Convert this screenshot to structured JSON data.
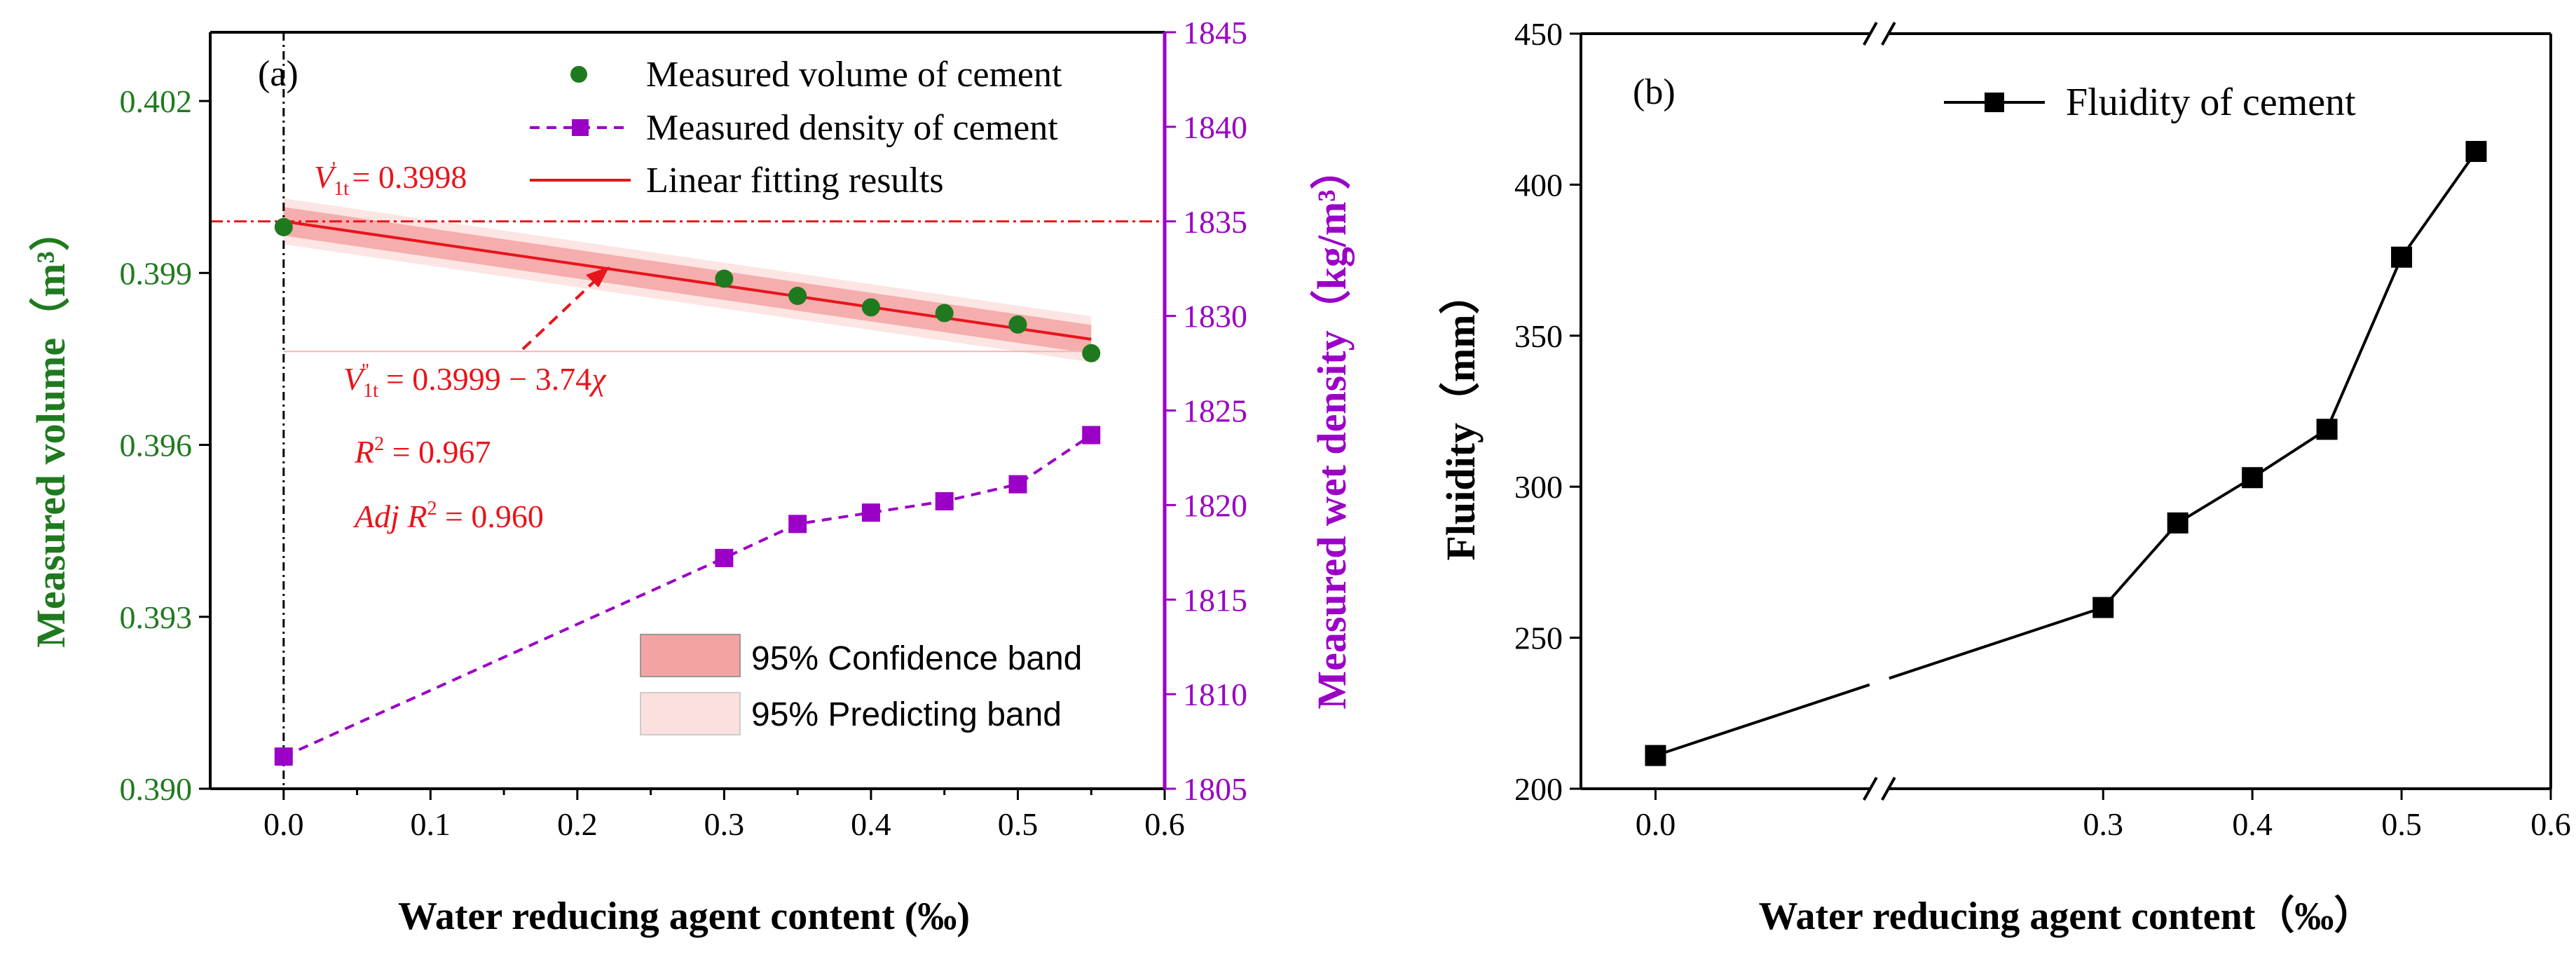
{
  "colors": {
    "green": "#1f7a1f",
    "purple": "#9b00c6",
    "red": "#e8141b",
    "conf_band": "#f4a3a3",
    "pred_band": "#fbe0de",
    "black": "#000000"
  },
  "chart_data": [
    {
      "id": "a",
      "type": "scatter",
      "panel_label": "(a)",
      "xlabel": "Water reducing agent content (‰)",
      "ylabel_left": "Measured volume（m³）",
      "ylabel_right": "Measured wet density（kg/m³）",
      "xlim": [
        -0.05,
        0.6
      ],
      "ylim_left": [
        0.39,
        0.4032
      ],
      "ylim_right": [
        1805,
        1845
      ],
      "x_ticks": [
        0.0,
        0.1,
        0.2,
        0.3,
        0.4,
        0.5,
        0.6
      ],
      "x_tick_labels": [
        "0.0",
        "0.1",
        "0.2",
        "0.3",
        "0.4",
        "0.5",
        "0.6"
      ],
      "y_left_ticks": [
        0.39,
        0.393,
        0.396,
        0.399,
        0.402
      ],
      "y_left_tick_labels": [
        "0.390",
        "0.393",
        "0.396",
        "0.399",
        "0.402"
      ],
      "y_right_ticks": [
        1805,
        1810,
        1815,
        1820,
        1825,
        1830,
        1835,
        1840,
        1845
      ],
      "y_right_tick_labels": [
        "1805",
        "1810",
        "1815",
        "1820",
        "1825",
        "1830",
        "1835",
        "1840",
        "1845"
      ],
      "series": [
        {
          "name": "Measured volume of cement",
          "axis": "left",
          "marker": "circle",
          "x": [
            0.0,
            0.3,
            0.35,
            0.4,
            0.45,
            0.5,
            0.55
          ],
          "y": [
            0.3998,
            0.3989,
            0.3986,
            0.3984,
            0.3983,
            0.3981,
            0.3976
          ]
        },
        {
          "name": "Measured density of cement",
          "axis": "right",
          "marker": "square",
          "line": "dashed",
          "x": [
            0.0,
            0.3,
            0.35,
            0.4,
            0.45,
            0.5,
            0.55
          ],
          "y": [
            1806.7,
            1817.2,
            1819.0,
            1819.6,
            1820.2,
            1821.1,
            1823.7
          ]
        }
      ],
      "fit": {
        "name": "Linear fitting results",
        "intercept": 0.3999,
        "slope": -0.00374,
        "x_range": [
          0.0,
          0.55
        ],
        "conf_halfwidth": [
          0.00025,
          0.00025
        ],
        "pred_halfwidth": [
          0.0004,
          0.0004
        ],
        "ref_value": 0.3999,
        "ref_line_value_left": 0.39763
      },
      "legend_bands": [
        "95% Confidence band",
        "95% Predicting band"
      ],
      "annotations": {
        "v_prime_prefix": "V",
        "v_prime_sub": "1t",
        "v_prime_sup": "'",
        "v_prime_rest": " = 0.3998",
        "v_dprime_prefix": "V",
        "v_dprime_sub": "1t",
        "v_dprime_sup": "\"",
        "v_dprime_rest": " = 0.3999 − 3.74",
        "v_dprime_chi": "χ",
        "r2_R": "R",
        "r2_sup": "2",
        "r2_rest": " = 0.967",
        "adj_label": "Adj R",
        "adj_sup": "2",
        "adj_rest": " = 0.960"
      }
    },
    {
      "id": "b",
      "type": "line",
      "panel_label": "(b)",
      "xlabel": "Water reducing agent content（‰）",
      "ylabel": "Fluidity（mm）",
      "xlim": [
        -0.05,
        0.6
      ],
      "ylim": [
        200,
        450
      ],
      "x_ticks": [
        0.0,
        0.3,
        0.4,
        0.5,
        0.6
      ],
      "x_tick_labels": [
        "0.0",
        "0.3",
        "0.4",
        "0.5",
        "0.6"
      ],
      "y_ticks": [
        200,
        250,
        300,
        350,
        400,
        450
      ],
      "y_tick_labels": [
        "200",
        "250",
        "300",
        "350",
        "400",
        "450"
      ],
      "axis_break_x": 0.15,
      "series": [
        {
          "name": "Fluidity of cement",
          "marker": "square",
          "x": [
            0.0,
            0.3,
            0.35,
            0.4,
            0.45,
            0.5,
            0.55
          ],
          "y": [
            211,
            260,
            288,
            303,
            319,
            376,
            411
          ]
        }
      ]
    }
  ]
}
